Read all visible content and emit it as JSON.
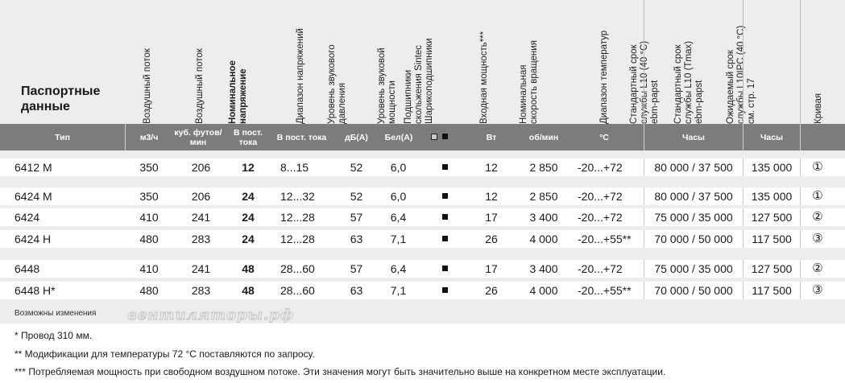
{
  "title": "Паспортные данные",
  "headers": {
    "airflow_m3": "Воздушный поток",
    "airflow_cfm": "Воздушный поток",
    "nominal_voltage": "Номинальное напряжение",
    "voltage_range": "Диапазон напряжений",
    "sound_pressure": "Уровень звукового давления",
    "sound_power": "Уровень звуковой мощности",
    "bearing": "Подшипники скольжения Sintec Шарикоподшипники",
    "input_power": "Входная мощность***",
    "speed": "Номинальная скорость вращения",
    "temp_range": "Диапазон температур",
    "life_std": "Стандартный срок службы L10 (40 °C) ebm-papst",
    "life_tmax": "Стандартный срок службы L10 (Tmax) ebm-papst",
    "life_ipc": "Ожидаемый срок службы L10IPC (40 °C) см. стр. 17",
    "curve": "Кривая"
  },
  "units": {
    "type": "Тип",
    "m3h": "м3/ч",
    "cfm": "куб. футов/ мин",
    "vdc": "В пост. тока",
    "vrange": "В пост. тока",
    "dba": "дБ(А)",
    "bela": "Бел(А)",
    "w": "Вт",
    "rpm": "об/мин",
    "degc": "°C",
    "hours1": "Часы",
    "hours2": "Часы"
  },
  "rows": [
    {
      "type": "6412 M",
      "m3h": "350",
      "cfm": "206",
      "volt": "12",
      "range": "8...15",
      "dba": "52",
      "bela": "6,0",
      "w": "12",
      "rpm": "2 850",
      "temp": "-20...+72",
      "life": "80 000 / 37 500",
      "ipc": "135 000",
      "curve": "①"
    },
    {
      "type": "6424 M",
      "m3h": "350",
      "cfm": "206",
      "volt": "24",
      "range": "12...32",
      "dba": "52",
      "bela": "6,0",
      "w": "12",
      "rpm": "2 850",
      "temp": "-20...+72",
      "life": "80 000 / 37 500",
      "ipc": "135 000",
      "curve": "①"
    },
    {
      "type": "6424",
      "m3h": "410",
      "cfm": "241",
      "volt": "24",
      "range": "12...28",
      "dba": "57",
      "bela": "6,4",
      "w": "17",
      "rpm": "3 400",
      "temp": "-20...+72",
      "life": "75 000 / 35 000",
      "ipc": "127 500",
      "curve": "②"
    },
    {
      "type": "6424 H",
      "m3h": "480",
      "cfm": "283",
      "volt": "24",
      "range": "12...28",
      "dba": "63",
      "bela": "7,1",
      "w": "26",
      "rpm": "4 000",
      "temp": "-20...+55**",
      "life": "70 000 / 50 000",
      "ipc": "117 500",
      "curve": "③"
    },
    {
      "type": "6448",
      "m3h": "410",
      "cfm": "241",
      "volt": "48",
      "range": "28...60",
      "dba": "57",
      "bela": "6,4",
      "w": "17",
      "rpm": "3 400",
      "temp": "-20...+72",
      "life": "75 000 / 35 000",
      "ipc": "127 500",
      "curve": "②"
    },
    {
      "type": "6448 H*",
      "m3h": "480",
      "cfm": "283",
      "volt": "48",
      "range": "28...60",
      "dba": "63",
      "bela": "7,1",
      "w": "26",
      "rpm": "4 000",
      "temp": "-20...+55**",
      "life": "70 000 / 50 000",
      "ipc": "117 500",
      "curve": "③"
    }
  ],
  "changes": "Возможны изменения",
  "watermark": "вентиляторы.рф",
  "notes": [
    "* Провод 310 мм.",
    "** Модификации для температуры 72 °C поставляются по запросу.",
    "*** Потребляемая мощность при свободном воздушном потоке. Эти значения могут быть значительно выше на конкретном месте эксплуатации."
  ]
}
